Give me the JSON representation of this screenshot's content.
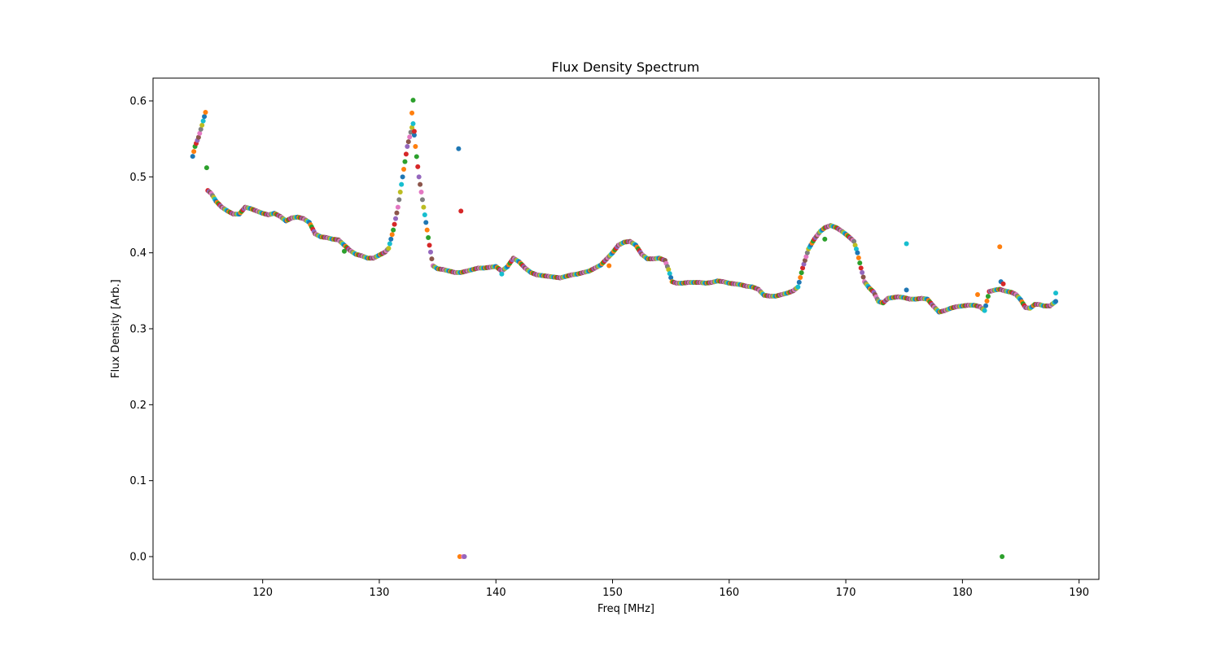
{
  "chart_data": {
    "type": "scatter",
    "title": "Flux Density Spectrum",
    "xlabel": "Freq [MHz]",
    "ylabel": "Flux Density [Arb.]",
    "xlim": [
      110.6,
      191.7
    ],
    "ylim": [
      -0.03,
      0.63
    ],
    "xticks": [
      120,
      130,
      140,
      150,
      160,
      170,
      180,
      190
    ],
    "yticks": [
      0.0,
      0.1,
      0.2,
      0.3,
      0.4,
      0.5,
      0.6
    ],
    "ytick_labels": [
      "0.0",
      "0.1",
      "0.2",
      "0.3",
      "0.4",
      "0.5",
      "0.6"
    ],
    "grid": false,
    "marker_colors": [
      "#1f77b4",
      "#ff7f0e",
      "#2ca02c",
      "#d62728",
      "#9467bd",
      "#8c564b",
      "#e377c2",
      "#7f7f7f",
      "#bcbd22",
      "#17becf"
    ],
    "x_step": 0.1,
    "curve": [
      [
        114.0,
        0.527
      ],
      [
        114.2,
        0.54
      ],
      [
        114.5,
        0.552
      ],
      [
        114.8,
        0.568
      ],
      [
        115.1,
        0.585
      ],
      [
        115.2,
        0.512
      ],
      [
        115.3,
        0.482
      ],
      [
        115.6,
        0.478
      ],
      [
        116.0,
        0.468
      ],
      [
        116.5,
        0.46
      ],
      [
        117.0,
        0.455
      ],
      [
        117.5,
        0.451
      ],
      [
        118.0,
        0.451
      ],
      [
        118.5,
        0.46
      ],
      [
        119.0,
        0.458
      ],
      [
        119.5,
        0.455
      ],
      [
        120.0,
        0.452
      ],
      [
        120.5,
        0.45
      ],
      [
        121.0,
        0.452
      ],
      [
        121.5,
        0.448
      ],
      [
        122.0,
        0.442
      ],
      [
        122.5,
        0.446
      ],
      [
        123.0,
        0.447
      ],
      [
        123.5,
        0.445
      ],
      [
        124.0,
        0.44
      ],
      [
        124.5,
        0.425
      ],
      [
        125.0,
        0.421
      ],
      [
        125.5,
        0.42
      ],
      [
        126.0,
        0.418
      ],
      [
        126.5,
        0.417
      ],
      [
        127.0,
        0.41
      ],
      [
        127.5,
        0.403
      ],
      [
        128.0,
        0.398
      ],
      [
        128.5,
        0.396
      ],
      [
        129.0,
        0.393
      ],
      [
        129.5,
        0.393
      ],
      [
        130.0,
        0.397
      ],
      [
        130.5,
        0.401
      ],
      [
        130.8,
        0.406
      ],
      [
        131.2,
        0.43
      ],
      [
        131.6,
        0.46
      ],
      [
        132.0,
        0.5
      ],
      [
        132.4,
        0.54
      ],
      [
        132.8,
        0.565
      ],
      [
        132.9,
        0.57
      ],
      [
        133.1,
        0.54
      ],
      [
        133.4,
        0.5
      ],
      [
        133.7,
        0.47
      ],
      [
        134.0,
        0.44
      ],
      [
        134.3,
        0.41
      ],
      [
        134.6,
        0.383
      ],
      [
        135.0,
        0.379
      ],
      [
        135.5,
        0.378
      ],
      [
        136.0,
        0.376
      ],
      [
        136.5,
        0.374
      ],
      [
        137.0,
        0.374
      ],
      [
        137.5,
        0.376
      ],
      [
        138.0,
        0.378
      ],
      [
        138.5,
        0.38
      ],
      [
        139.0,
        0.38
      ],
      [
        139.5,
        0.381
      ],
      [
        140.0,
        0.382
      ],
      [
        140.5,
        0.376
      ],
      [
        141.0,
        0.382
      ],
      [
        141.5,
        0.393
      ],
      [
        142.0,
        0.388
      ],
      [
        142.5,
        0.38
      ],
      [
        143.0,
        0.374
      ],
      [
        143.5,
        0.371
      ],
      [
        144.0,
        0.37
      ],
      [
        144.5,
        0.369
      ],
      [
        145.0,
        0.368
      ],
      [
        145.5,
        0.367
      ],
      [
        146.0,
        0.369
      ],
      [
        146.5,
        0.371
      ],
      [
        147.0,
        0.372
      ],
      [
        147.5,
        0.374
      ],
      [
        148.0,
        0.376
      ],
      [
        148.5,
        0.38
      ],
      [
        149.0,
        0.384
      ],
      [
        149.5,
        0.392
      ],
      [
        150.0,
        0.4
      ],
      [
        150.5,
        0.41
      ],
      [
        151.0,
        0.414
      ],
      [
        151.5,
        0.415
      ],
      [
        152.0,
        0.41
      ],
      [
        152.5,
        0.398
      ],
      [
        153.0,
        0.392
      ],
      [
        153.5,
        0.392
      ],
      [
        154.0,
        0.393
      ],
      [
        154.5,
        0.39
      ],
      [
        154.8,
        0.378
      ],
      [
        155.1,
        0.362
      ],
      [
        155.5,
        0.36
      ],
      [
        156.0,
        0.36
      ],
      [
        156.5,
        0.361
      ],
      [
        157.0,
        0.361
      ],
      [
        157.5,
        0.361
      ],
      [
        158.0,
        0.36
      ],
      [
        158.5,
        0.361
      ],
      [
        159.0,
        0.363
      ],
      [
        159.5,
        0.362
      ],
      [
        160.0,
        0.36
      ],
      [
        160.5,
        0.359
      ],
      [
        161.0,
        0.358
      ],
      [
        161.5,
        0.356
      ],
      [
        162.0,
        0.355
      ],
      [
        162.5,
        0.352
      ],
      [
        163.0,
        0.344
      ],
      [
        163.5,
        0.343
      ],
      [
        164.0,
        0.343
      ],
      [
        164.5,
        0.345
      ],
      [
        165.0,
        0.347
      ],
      [
        165.5,
        0.35
      ],
      [
        165.9,
        0.355
      ],
      [
        166.3,
        0.38
      ],
      [
        166.8,
        0.405
      ],
      [
        167.3,
        0.418
      ],
      [
        167.8,
        0.428
      ],
      [
        168.2,
        0.433
      ],
      [
        168.7,
        0.436
      ],
      [
        169.2,
        0.433
      ],
      [
        169.7,
        0.428
      ],
      [
        170.2,
        0.422
      ],
      [
        170.7,
        0.415
      ],
      [
        171.0,
        0.4
      ],
      [
        171.3,
        0.38
      ],
      [
        171.6,
        0.362
      ],
      [
        172.0,
        0.354
      ],
      [
        172.4,
        0.348
      ],
      [
        172.8,
        0.336
      ],
      [
        173.2,
        0.334
      ],
      [
        173.6,
        0.34
      ],
      [
        174.0,
        0.341
      ],
      [
        174.5,
        0.342
      ],
      [
        175.0,
        0.341
      ],
      [
        175.5,
        0.339
      ],
      [
        176.0,
        0.339
      ],
      [
        176.5,
        0.34
      ],
      [
        177.0,
        0.339
      ],
      [
        177.5,
        0.33
      ],
      [
        178.0,
        0.322
      ],
      [
        178.5,
        0.324
      ],
      [
        179.0,
        0.327
      ],
      [
        179.5,
        0.329
      ],
      [
        180.0,
        0.33
      ],
      [
        180.5,
        0.331
      ],
      [
        181.0,
        0.331
      ],
      [
        181.5,
        0.329
      ],
      [
        181.9,
        0.324
      ],
      [
        182.3,
        0.349
      ],
      [
        182.8,
        0.351
      ],
      [
        183.2,
        0.352
      ],
      [
        183.6,
        0.35
      ],
      [
        184.2,
        0.348
      ],
      [
        184.6,
        0.345
      ],
      [
        185.0,
        0.338
      ],
      [
        185.4,
        0.328
      ],
      [
        185.8,
        0.327
      ],
      [
        186.2,
        0.332
      ],
      [
        186.6,
        0.332
      ],
      [
        187.0,
        0.33
      ],
      [
        187.5,
        0.33
      ],
      [
        188.0,
        0.336
      ]
    ],
    "outliers": [
      {
        "x": 136.8,
        "y": 0.537,
        "color": "#1f77b4"
      },
      {
        "x": 137.0,
        "y": 0.455,
        "color": "#d62728"
      },
      {
        "x": 136.9,
        "y": 0.0,
        "color": "#ff7f0e"
      },
      {
        "x": 137.2,
        "y": 0.0,
        "color": "#e377c2"
      },
      {
        "x": 137.3,
        "y": 0.0,
        "color": "#9467bd"
      },
      {
        "x": 132.9,
        "y": 0.601,
        "color": "#2ca02c"
      },
      {
        "x": 132.8,
        "y": 0.584,
        "color": "#ff7f0e"
      },
      {
        "x": 133.0,
        "y": 0.56,
        "color": "#d62728"
      },
      {
        "x": 149.7,
        "y": 0.383,
        "color": "#ff7f0e"
      },
      {
        "x": 175.2,
        "y": 0.412,
        "color": "#17becf"
      },
      {
        "x": 175.2,
        "y": 0.351,
        "color": "#1f77b4"
      },
      {
        "x": 181.3,
        "y": 0.345,
        "color": "#ff7f0e"
      },
      {
        "x": 183.2,
        "y": 0.408,
        "color": "#ff7f0e"
      },
      {
        "x": 183.3,
        "y": 0.362,
        "color": "#1f77b4"
      },
      {
        "x": 183.5,
        "y": 0.359,
        "color": "#d62728"
      },
      {
        "x": 183.4,
        "y": 0.0,
        "color": "#2ca02c"
      },
      {
        "x": 188.0,
        "y": 0.347,
        "color": "#17becf"
      },
      {
        "x": 168.2,
        "y": 0.418,
        "color": "#2ca02c"
      },
      {
        "x": 127.0,
        "y": 0.402,
        "color": "#2ca02c"
      },
      {
        "x": 140.5,
        "y": 0.372,
        "color": "#17becf"
      }
    ]
  }
}
